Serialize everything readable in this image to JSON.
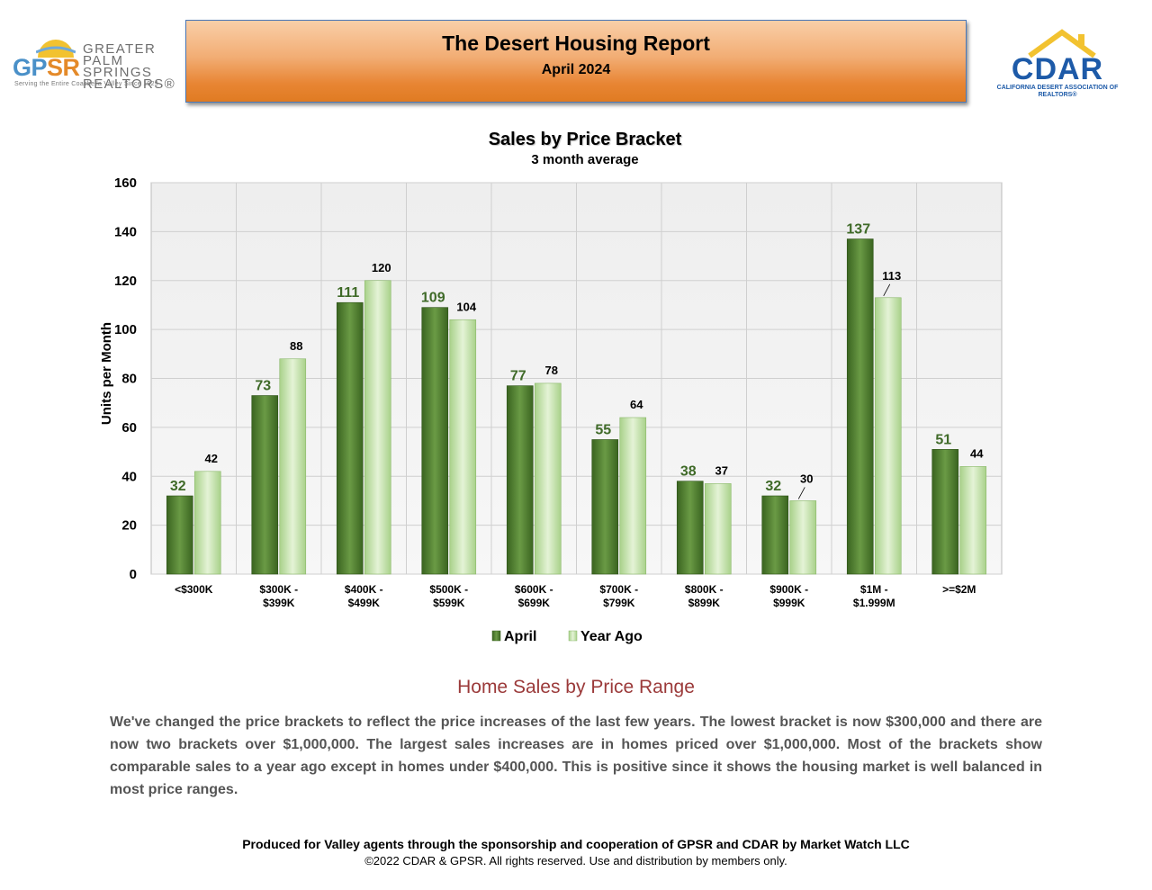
{
  "header": {
    "title": "The Desert Housing Report",
    "subtitle": "April 2024"
  },
  "logos": {
    "gpsr": {
      "mark": "GP",
      "mark_accent": "SR",
      "name": "GREATER PALM SPRINGS REALTORS®",
      "tagline": "Serving the Entire Coachella Valley Since 1929"
    },
    "cdar": {
      "mark": "CDAR",
      "name": "CALIFORNIA DESERT ASSOCIATION OF REALTORS®"
    }
  },
  "chart_data": {
    "type": "bar",
    "title": "Sales by Price Bracket",
    "subtitle": "3 month average",
    "ylabel": "Units per Month",
    "xlabel": "",
    "ylim": [
      0,
      160
    ],
    "yticks": [
      0,
      20,
      40,
      60,
      80,
      100,
      120,
      140,
      160
    ],
    "grid": true,
    "legend_position": "bottom",
    "categories": [
      [
        "<$300K"
      ],
      [
        "$300K -",
        "$399K"
      ],
      [
        "$400K -",
        "$499K"
      ],
      [
        "$500K -",
        "$599K"
      ],
      [
        "$600K -",
        "$699K"
      ],
      [
        "$700K -",
        "$799K"
      ],
      [
        "$800K -",
        "$899K"
      ],
      [
        "$900K -",
        "$999K"
      ],
      [
        "$1M -",
        "$1.999M"
      ],
      [
        ">=$2M"
      ]
    ],
    "series": [
      {
        "name": "April",
        "color": "#4f7f2e",
        "values": [
          32,
          73,
          111,
          109,
          77,
          55,
          38,
          32,
          137,
          51
        ]
      },
      {
        "name": "Year Ago",
        "color": "#c9e6b0",
        "values": [
          42,
          88,
          120,
          104,
          78,
          64,
          37,
          30,
          113,
          44
        ]
      }
    ]
  },
  "section": {
    "heading": "Home Sales by Price Range",
    "body": "We've changed the price brackets to reflect the price increases of the last few years. The lowest bracket is now $300,000 and there are now two brackets over $1,000,000. The largest sales increases are in homes priced over $1,000,000. Most of the brackets show comparable sales to a year ago except in homes under $400,000. This is positive since it shows the housing market is well balanced in most price ranges."
  },
  "footer": {
    "produced": "Produced for Valley agents through the sponsorship and cooperation of GPSR and CDAR by Market Watch LLC",
    "copyright": "©2022 CDAR & GPSR.  All rights reserved.  Use and distribution by members only."
  }
}
